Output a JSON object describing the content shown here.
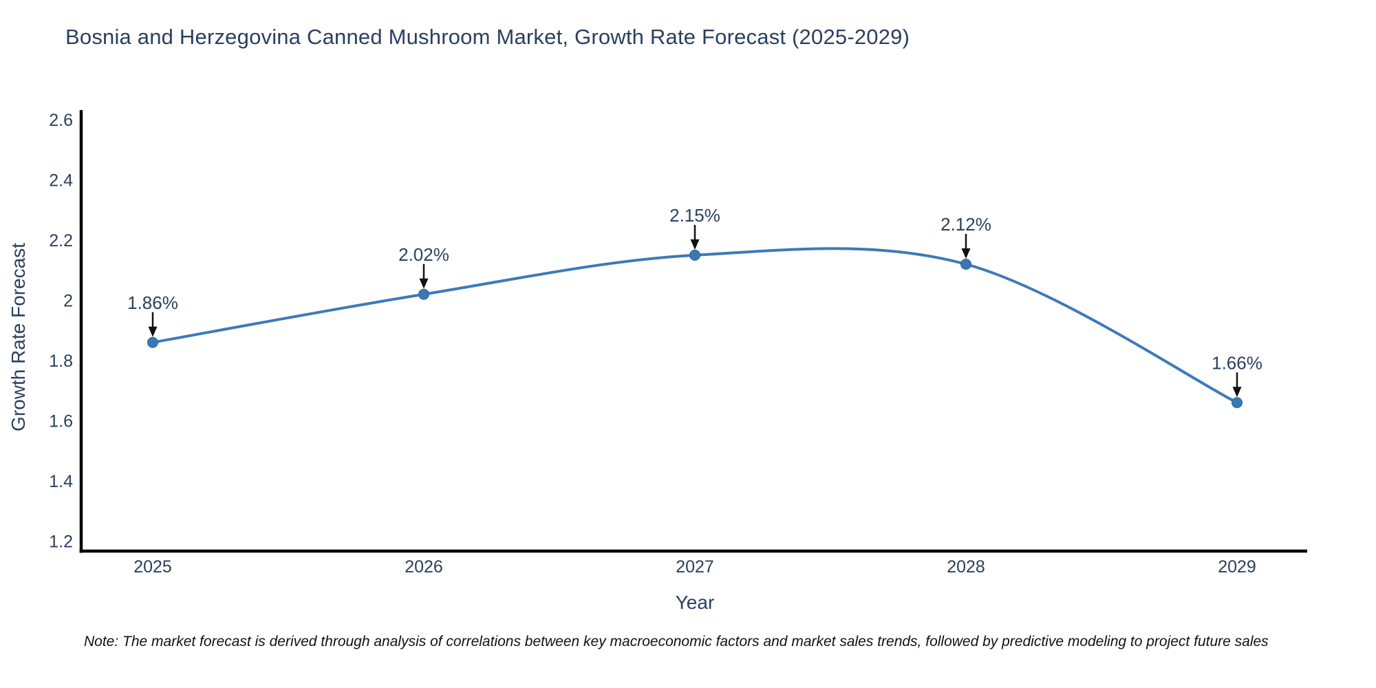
{
  "header": {
    "title": "Bosnia and Herzegovina Canned Mushroom Market, Growth Rate Forecast (2025-2029)"
  },
  "footer": {
    "note": "Note: The market forecast is derived through analysis of correlations between key macroeconomic factors and market sales trends, followed by predictive modeling to project future sales"
  },
  "chart_data": {
    "type": "line",
    "title": "Bosnia and Herzegovina Canned Mushroom Market, Growth Rate Forecast (2025-2029)",
    "xlabel": "Year",
    "ylabel": "Growth Rate Forecast",
    "categories": [
      "2025",
      "2026",
      "2027",
      "2028",
      "2029"
    ],
    "series": [
      {
        "name": "Growth Rate Forecast",
        "values": [
          1.86,
          2.02,
          2.15,
          2.12,
          1.66
        ]
      }
    ],
    "point_labels": [
      "1.86%",
      "2.02%",
      "2.15%",
      "2.12%",
      "1.66%"
    ],
    "ylim": [
      1.2,
      2.6
    ],
    "yticks": [
      "1.2",
      "1.4",
      "1.6",
      "1.8",
      "2",
      "2.2",
      "2.4",
      "2.6"
    ],
    "line_shape": "spline",
    "grid": false,
    "legend_position": "none",
    "colors": {
      "line": "#3d7ab8",
      "marker_fill": "#3a78b5",
      "marker_border": "#2f6496",
      "axis_line": "#000000",
      "text": "#2a3f5f",
      "annotation": "#111111"
    }
  }
}
